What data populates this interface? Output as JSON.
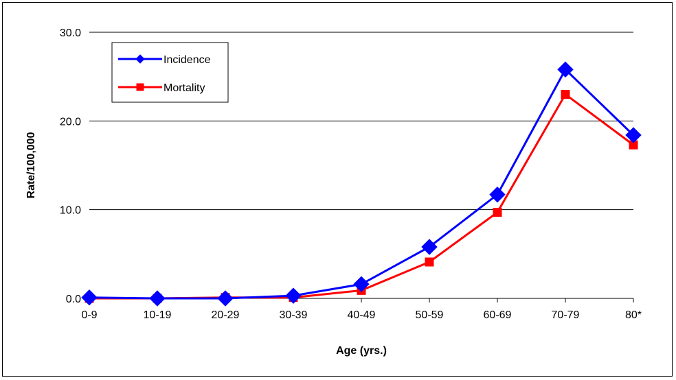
{
  "chart_data": {
    "type": "line",
    "categories": [
      "0-9",
      "10-19",
      "20-29",
      "30-39",
      "40-49",
      "50-59",
      "60-69",
      "70-79",
      "80*"
    ],
    "series": [
      {
        "name": "Incidence",
        "values": [
          0.1,
          0.0,
          0.0,
          0.3,
          1.6,
          5.8,
          11.7,
          25.8,
          18.4
        ],
        "color": "#0000ff",
        "marker": "diamond"
      },
      {
        "name": "Mortality",
        "values": [
          0.0,
          0.0,
          0.1,
          0.1,
          0.9,
          4.1,
          9.7,
          23.0,
          17.3
        ],
        "color": "#ff0000",
        "marker": "square"
      }
    ],
    "xlabel": "Age (yrs.)",
    "ylabel": "Rate/100,000",
    "ylim": [
      0,
      30
    ],
    "yticks": [
      "0.0",
      "10.0",
      "20.0",
      "30.0"
    ],
    "grid": true,
    "legend_position": "top-left"
  }
}
